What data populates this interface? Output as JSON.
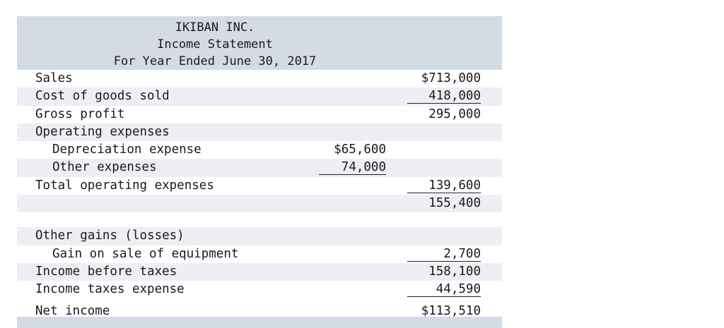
{
  "header": {
    "company": "IKIBAN INC.",
    "title": "Income Statement",
    "period": "For Year Ended June 30, 2017"
  },
  "rows": [
    {
      "label": "Sales",
      "value2": "$713,000"
    },
    {
      "label": "Cost of goods sold",
      "value2": "418,000"
    },
    {
      "label": "Gross profit",
      "value2": "295,000"
    },
    {
      "label": "Operating expenses"
    },
    {
      "label": "Depreciation expense",
      "value1": "$65,600"
    },
    {
      "label": "Other expenses",
      "value1": "74,000"
    },
    {
      "label": "Total operating expenses",
      "value2": "139,600"
    },
    {
      "value2": "155,400"
    },
    {
      "label": "Other gains (losses)"
    },
    {
      "label": "Gain on sale of equipment",
      "value2": "2,700"
    },
    {
      "label": "Income before taxes",
      "value2": "158,100"
    },
    {
      "label": "Income taxes expense",
      "value2": "44,590"
    },
    {
      "label": "Net income",
      "value2": "$113,510"
    }
  ]
}
